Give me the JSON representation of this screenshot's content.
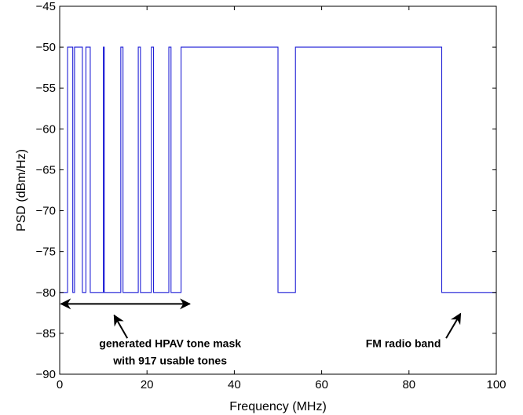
{
  "chart_data": {
    "type": "line",
    "xlabel": "Frequency (MHz)",
    "ylabel": "PSD (dBm/Hz)",
    "xlim": [
      0,
      100
    ],
    "ylim": [
      -90,
      -45
    ],
    "xticks": [
      0,
      20,
      40,
      60,
      80,
      100
    ],
    "yticks": [
      -90,
      -85,
      -80,
      -75,
      -70,
      -65,
      -60,
      -55,
      -50,
      -45
    ],
    "grid": false,
    "series": [
      {
        "color": "#1f1fd6",
        "x": [
          0,
          1.8,
          1.8,
          3.0,
          3.0,
          3.4,
          3.4,
          5.2,
          5.2,
          6.0,
          6.0,
          7.0,
          7.0,
          10.0,
          10.0,
          10.2,
          10.2,
          14.0,
          14.0,
          14.5,
          14.5,
          18.0,
          18.0,
          18.5,
          18.5,
          21.0,
          21.0,
          21.5,
          21.5,
          25.0,
          25.0,
          25.5,
          25.5,
          27.8,
          27.8,
          30.0,
          30.0,
          50.0,
          50.0,
          54.0,
          54.0,
          87.5,
          87.5,
          100
        ],
        "y": [
          -80,
          -80,
          -50,
          -50,
          -80,
          -80,
          -50,
          -50,
          -80,
          -80,
          -50,
          -50,
          -80,
          -80,
          -50,
          -50,
          -80,
          -80,
          -50,
          -50,
          -80,
          -80,
          -50,
          -50,
          -80,
          -80,
          -50,
          -50,
          -80,
          -80,
          -50,
          -50,
          -80,
          -80,
          -50,
          -50,
          -50,
          -50,
          -80,
          -80,
          -50,
          -50,
          -80,
          -80
        ]
      }
    ],
    "annotations": [
      {
        "text_lines": [
          "generated HPAV tone mask",
          "with 917 usable tones"
        ],
        "arrow_from": [
          15.5,
          -85.6
        ],
        "arrow_to": [
          12.5,
          -82.8
        ],
        "text_x": 25.3,
        "text_y": [
          -86.7,
          -88.8
        ]
      },
      {
        "text_lines": [
          "FM radio band"
        ],
        "arrow_from": [
          88.5,
          -85.6
        ],
        "arrow_to": [
          91.8,
          -82.6
        ],
        "text_x": 78.7,
        "text_y": [
          -86.7
        ]
      }
    ],
    "bracket": {
      "x_start": 0.3,
      "x_end": 29.8,
      "y": -81.4
    }
  }
}
